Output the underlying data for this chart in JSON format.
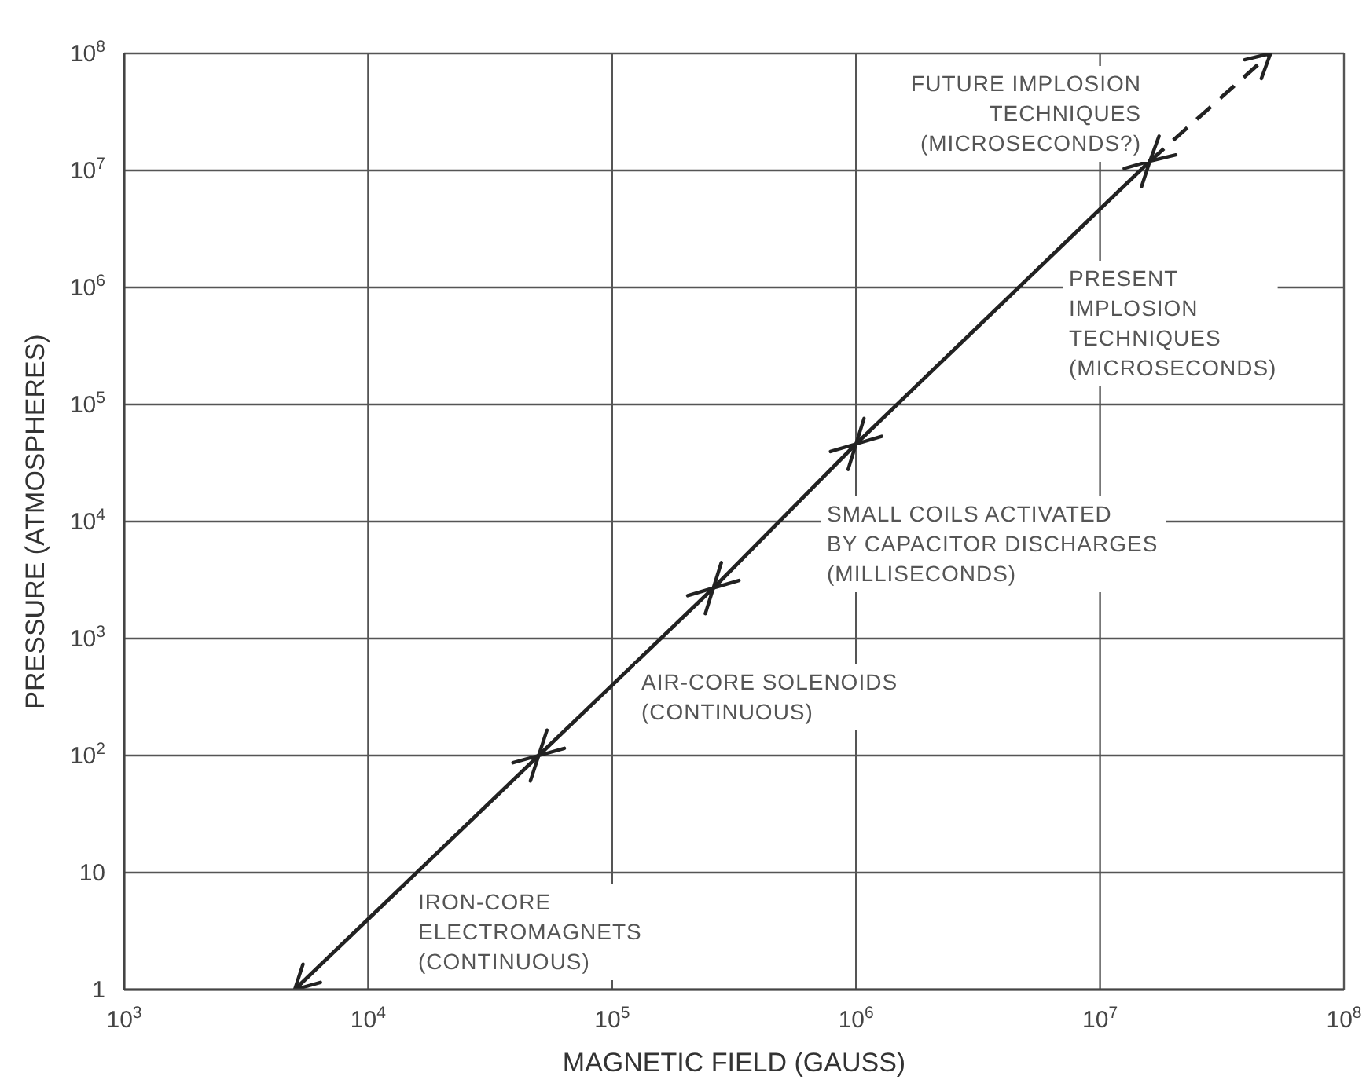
{
  "chart_data": {
    "type": "line",
    "xlabel": "MAGNETIC FIELD (GAUSS)",
    "ylabel": "PRESSURE (ATMOSPHERES)",
    "log": "xy",
    "grid": true,
    "marker": "none",
    "xlim": [
      1000,
      100000000
    ],
    "ylim": [
      1,
      100000000
    ],
    "xticks": [
      {
        "value": 1000,
        "label": "10$^{3}$"
      },
      {
        "value": 10000,
        "label": "10$^{4}$"
      },
      {
        "value": 100000,
        "label": "10$^{5}$"
      },
      {
        "value": 1000000,
        "label": "10$^{6}$"
      },
      {
        "value": 10000000,
        "label": "10$^{7}$"
      },
      {
        "value": 100000000,
        "label": "10$^{8}$"
      }
    ],
    "yticks": [
      1,
      10,
      {
        "value": 100,
        "label": "10$^{2}$"
      },
      {
        "value": 1000,
        "label": "10$^{3}$"
      },
      {
        "value": 10000,
        "label": "10$^{4}$"
      },
      {
        "value": 100000,
        "label": "10$^{5}$"
      },
      {
        "value": 1000000,
        "label": "10$^{6}$"
      },
      {
        "value": 10000000,
        "label": "10$^{7}$"
      },
      {
        "value": 100000000,
        "label": "10$^{8}$"
      }
    ],
    "series": [
      {
        "color": "#222222",
        "line_style": "solid",
        "x": [
          5000,
          50000,
          260000,
          1000000,
          16000000
        ],
        "values": [
          1,
          100,
          2700,
          46000,
          12000000
        ]
      },
      {
        "color": "#222222",
        "line_style": "dashed",
        "x": [
          16000000,
          50000000
        ],
        "values": [
          12000000,
          100000000
        ]
      }
    ],
    "annotations": [
      "FUTURE IMPLOSION\nTECHNIQUES\n(MICROSECONDS?)",
      "PRESENT\nIMPLOSION\nTECHNIQUES\n(MICROSECONDS)",
      "SMALL COILS ACTIVATED\nBY CAPACITOR DISCHARGES\n(MILLISECONDS)",
      "AIR-CORE SOLENOIDS\n(CONTINUOUS)",
      "IRON-CORE\nELECTROMAGNETS\n(CONTINUOUS)"
    ]
  }
}
